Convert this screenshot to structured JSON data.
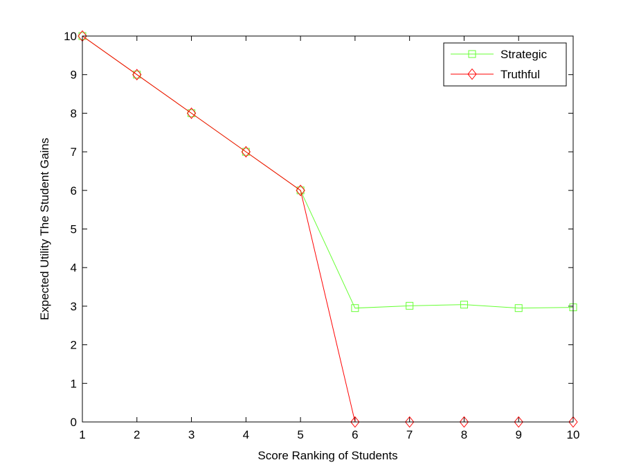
{
  "chart_data": {
    "type": "line",
    "xlabel": "Score Ranking of Students",
    "ylabel": "Expected Utility The Student Gains",
    "xlim": [
      1,
      10
    ],
    "ylim": [
      0,
      10
    ],
    "xticks": [
      1,
      2,
      3,
      4,
      5,
      6,
      7,
      8,
      9,
      10
    ],
    "yticks": [
      0,
      1,
      2,
      3,
      4,
      5,
      6,
      7,
      8,
      9,
      10
    ],
    "grid": false,
    "legend_position": "top-right",
    "series": [
      {
        "name": "Strategic",
        "color": "#66ff33",
        "marker": "square",
        "x": [
          1,
          2,
          3,
          4,
          5,
          6,
          7,
          8,
          9,
          10
        ],
        "y": [
          10,
          9,
          8,
          7,
          6,
          2.95,
          3.01,
          3.04,
          2.95,
          2.97
        ]
      },
      {
        "name": "Truthful",
        "color": "#ff0000",
        "marker": "diamond",
        "x": [
          1,
          2,
          3,
          4,
          5,
          6,
          7,
          8,
          9,
          10
        ],
        "y": [
          10,
          9,
          8,
          7,
          6,
          0,
          0,
          0,
          0,
          0
        ]
      }
    ]
  }
}
